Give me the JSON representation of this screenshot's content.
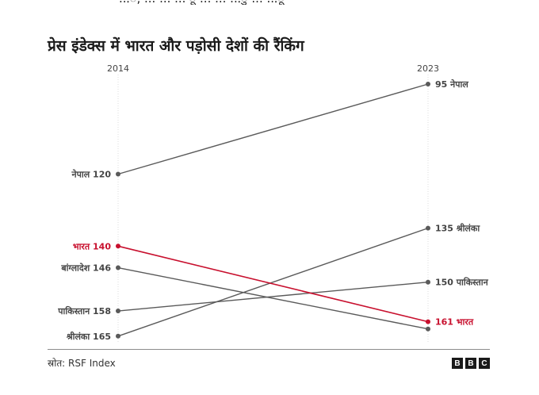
{
  "header": {
    "fragment": "...ँ, ... ... ... ू ... ... ...ु ... ...ू",
    "title": "प्रेस इंडेक्स में भारत और पड़ोसी देशों की रैंकिंग"
  },
  "chart_data": {
    "type": "line",
    "title": "प्रेस इंडेक्स में भारत और पड़ोसी देशों की रैंकिंग",
    "x": [
      "2014",
      "2023"
    ],
    "y_inverted": true,
    "series": [
      {
        "name": "नेपाल",
        "values": [
          120,
          95
        ],
        "color": "#5a5a5a",
        "start_label": "नेपाल 120",
        "end_label": "95 नेपाल"
      },
      {
        "name": "भारत",
        "values": [
          140,
          161
        ],
        "color": "#c8102e",
        "start_label": "भारत 140",
        "end_label": "161 भारत"
      },
      {
        "name": "बांग्लादेश",
        "values": [
          146,
          163
        ],
        "color": "#5a5a5a",
        "start_label": "बांग्लादेश 146",
        "end_label": ""
      },
      {
        "name": "पाकिस्तान",
        "values": [
          158,
          150
        ],
        "color": "#5a5a5a",
        "start_label": "पाकिस्तान 158",
        "end_label": "150 पाकिस्तान"
      },
      {
        "name": "श्रीलंका",
        "values": [
          165,
          135
        ],
        "color": "#5a5a5a",
        "start_label": "श्रीलंका 165",
        "end_label": "135 श्रीलंका"
      }
    ],
    "highlight_color": "#c8102e"
  },
  "footer": {
    "source": "स्रोत: RSF Index",
    "logo": [
      "B",
      "B",
      "C"
    ]
  }
}
